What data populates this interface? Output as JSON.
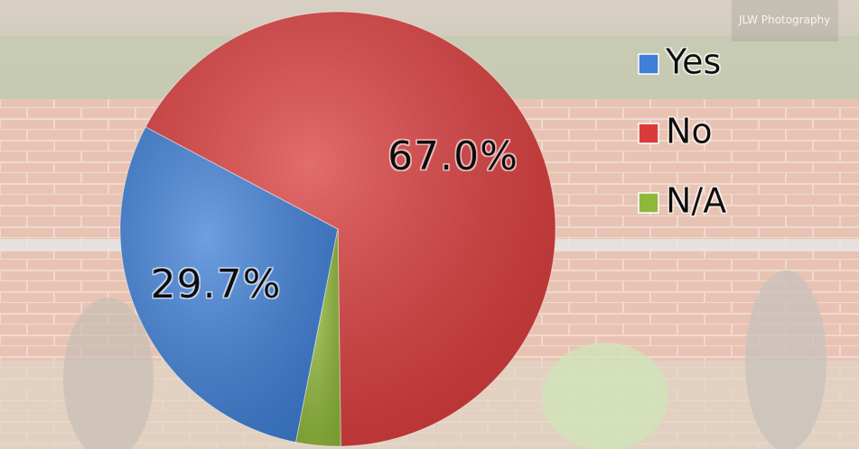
{
  "chart_data": {
    "type": "pie",
    "categories": [
      "Yes",
      "No",
      "N/A"
    ],
    "values": [
      29.7,
      67.0,
      3.3
    ],
    "value_labels": [
      "29.7%",
      "67.0%",
      null
    ],
    "colors": [
      "#3f7fd6",
      "#d93b3b",
      "#8fb83a"
    ],
    "legend": "right"
  },
  "watermark": "JLW Photography"
}
